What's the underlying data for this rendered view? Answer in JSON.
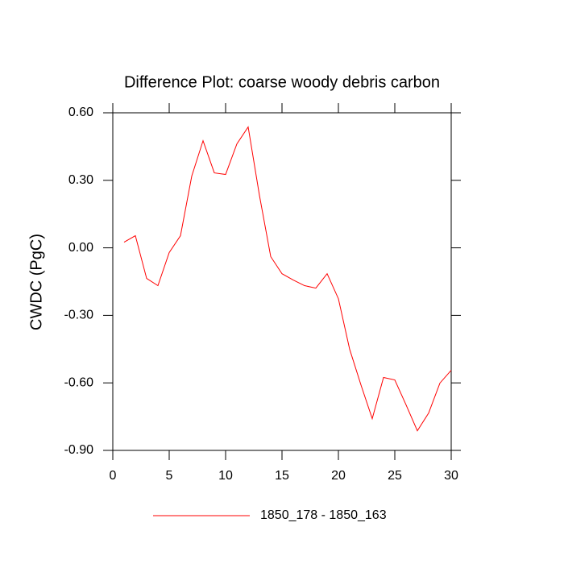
{
  "chart_data": {
    "type": "line",
    "title": "Difference Plot: coarse woody debris carbon",
    "y_label": "CWDC  (PgC)",
    "x": [
      1,
      2,
      3,
      4,
      5,
      6,
      7,
      8,
      9,
      10,
      11,
      12,
      13,
      14,
      15,
      16,
      17,
      18,
      19,
      20,
      21,
      22,
      23,
      24,
      25,
      26,
      27,
      28,
      29,
      30
    ],
    "series": [
      {
        "name": "1850_178 - 1850_163",
        "color": "#ff0000",
        "values": [
          0.025,
          0.054,
          -0.136,
          -0.168,
          -0.021,
          0.054,
          0.319,
          0.476,
          0.333,
          0.326,
          0.462,
          0.537,
          0.233,
          -0.039,
          -0.115,
          -0.143,
          -0.168,
          -0.179,
          -0.115,
          -0.226,
          -0.451,
          -0.609,
          -0.759,
          -0.576,
          -0.587,
          -0.698,
          -0.813,
          -0.734,
          -0.601,
          -0.544
        ]
      }
    ],
    "xlim": [
      0,
      30
    ],
    "xticks": [
      0,
      5,
      10,
      15,
      20,
      25,
      30
    ],
    "ylim": [
      -0.9,
      0.6
    ],
    "yticks": [
      {
        "value": 0.6,
        "label": "0.60"
      },
      {
        "value": 0.3,
        "label": "0.30"
      },
      {
        "value": 0,
        "label": "0.00"
      },
      {
        "value": -0.3,
        "label": "-0.30"
      },
      {
        "value": -0.6,
        "label": "-0.60"
      },
      {
        "value": -0.9,
        "label": "-0.90"
      }
    ],
    "legend": "bottom"
  }
}
